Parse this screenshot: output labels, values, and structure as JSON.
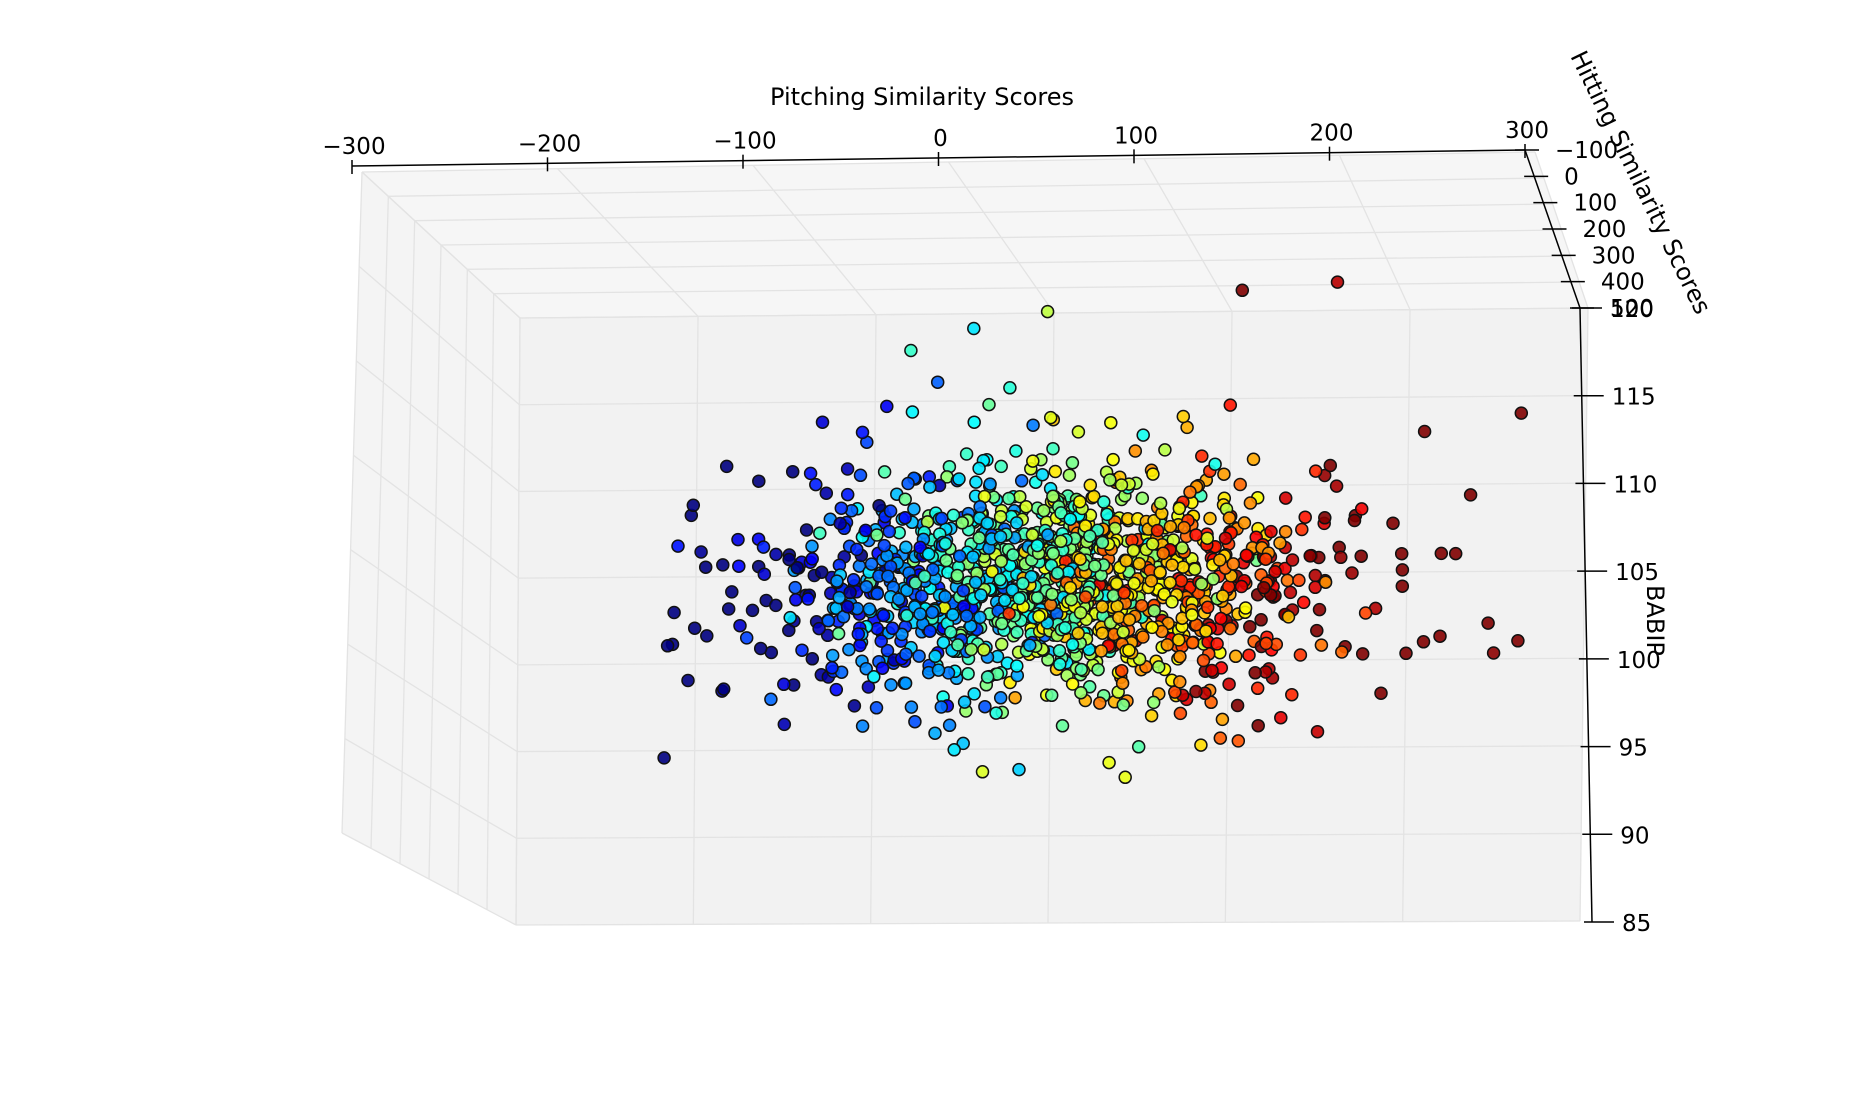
{
  "chart_data": {
    "type": "scatter",
    "projection": "3d",
    "title": "",
    "xlabel": "Pitching Similarity Scores",
    "ylabel": "Hitting Similarity Scores",
    "zlabel": "BABIP",
    "xlim": [
      -300,
      300
    ],
    "ylim": [
      -100,
      500
    ],
    "zlim": [
      85,
      120
    ],
    "x_ticks": [
      -300,
      -200,
      -100,
      0,
      100,
      200,
      300
    ],
    "y_ticks": [
      -100,
      0,
      100,
      200,
      300,
      400,
      500
    ],
    "z_ticks": [
      85,
      90,
      95,
      100,
      105,
      110,
      115,
      120
    ],
    "x_tick_labels": [
      "−300",
      "−200",
      "−100",
      "0",
      "100",
      "200",
      "300"
    ],
    "y_tick_labels": [
      "−100",
      "0",
      "100",
      "200",
      "300",
      "400",
      "500"
    ],
    "z_tick_labels": [
      "85",
      "90",
      "95",
      "100",
      "105",
      "110",
      "115",
      "120"
    ],
    "grid": true,
    "colormap": "jet",
    "color_by": "x",
    "marker_edge_color": "#111111",
    "pane_color": "#f2f2f2",
    "n_points_shown": 1400,
    "points_estimated_key": [
      {
        "x": -210,
        "z": 107
      },
      {
        "x": -195,
        "z": 106.5
      },
      {
        "x": -185,
        "z": 105.5
      },
      {
        "x": -170,
        "z": 103
      },
      {
        "x": -165,
        "z": 101
      },
      {
        "x": -158,
        "z": 98
      },
      {
        "x": -150,
        "z": 96.5
      },
      {
        "x": -82,
        "z": 118
      },
      {
        "x": -45,
        "z": 119
      },
      {
        "x": -2,
        "z": 120
      },
      {
        "x": 107,
        "z": 121
      },
      {
        "x": 157,
        "z": 121.5
      },
      {
        "x": 210,
        "z": 113
      },
      {
        "x": 262,
        "z": 114
      },
      {
        "x": 220,
        "z": 106
      },
      {
        "x": 245,
        "z": 102
      },
      {
        "x": 265,
        "z": 101
      },
      {
        "x": 185,
        "z": 98
      },
      {
        "x": 150,
        "z": 96
      },
      {
        "x": -15,
        "z": 94
      },
      {
        "x": 55,
        "z": 97
      },
      {
        "x": -55,
        "z": 95
      }
    ],
    "distribution": {
      "x_center": 0,
      "x_spread": 75,
      "z_center": 104.5,
      "z_spread": 3.6
    }
  }
}
